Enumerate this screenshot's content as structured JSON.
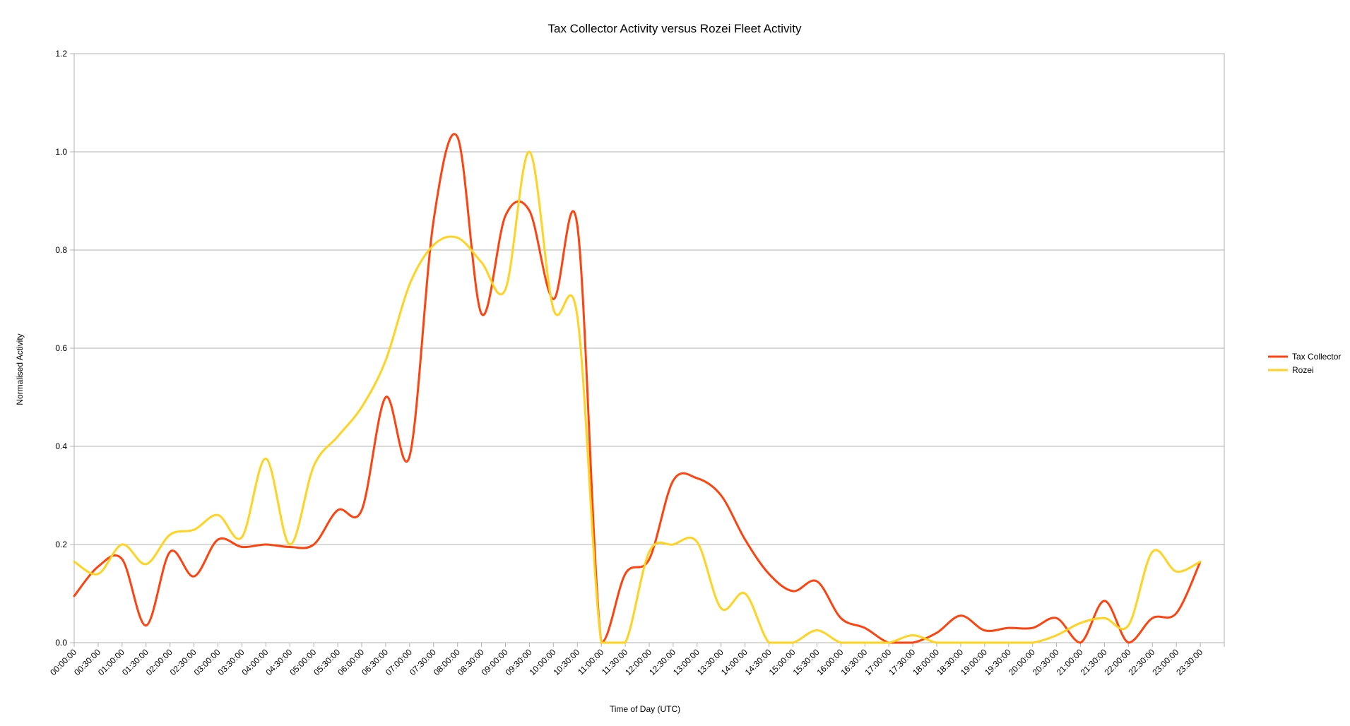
{
  "chart_data": {
    "type": "line",
    "title": "Tax Collector Activity versus Rozei Fleet Activity",
    "xlabel": "Time of Day (UTC)",
    "ylabel": "Normalised Activity",
    "ylim": [
      0,
      1.2
    ],
    "yticks": [
      "0.0",
      "0.2",
      "0.4",
      "0.6",
      "0.8",
      "1.0",
      "1.2"
    ],
    "grid": true,
    "legend_position": "right",
    "x": [
      "00:00:00",
      "00:30:00",
      "01:00:00",
      "01:30:00",
      "02:00:00",
      "02:30:00",
      "03:00:00",
      "03:30:00",
      "04:00:00",
      "04:30:00",
      "05:00:00",
      "05:30:00",
      "06:00:00",
      "06:30:00",
      "07:00:00",
      "07:30:00",
      "08:00:00",
      "08:30:00",
      "09:00:00",
      "09:30:00",
      "10:00:00",
      "10:30:00",
      "11:00:00",
      "11:30:00",
      "12:00:00",
      "12:30:00",
      "13:00:00",
      "13:30:00",
      "14:00:00",
      "14:30:00",
      "15:00:00",
      "15:30:00",
      "16:00:00",
      "16:30:00",
      "17:00:00",
      "17:30:00",
      "18:00:00",
      "18:30:00",
      "19:00:00",
      "19:30:00",
      "20:00:00",
      "20:30:00",
      "21:00:00",
      "21:30:00",
      "22:00:00",
      "22:30:00",
      "23:00:00",
      "23:30:00"
    ],
    "series": [
      {
        "name": "Tax Collector",
        "color": "#ff420e",
        "values": [
          0.095,
          0.155,
          0.17,
          0.035,
          0.185,
          0.135,
          0.21,
          0.195,
          0.2,
          0.195,
          0.2,
          0.27,
          0.27,
          0.5,
          0.38,
          0.86,
          1.03,
          0.67,
          0.87,
          0.88,
          0.7,
          0.85,
          0.0,
          0.14,
          0.17,
          0.33,
          0.335,
          0.3,
          0.21,
          0.14,
          0.105,
          0.125,
          0.05,
          0.03,
          0.0,
          0.0,
          0.02,
          0.055,
          0.025,
          0.03,
          0.03,
          0.05,
          0.0,
          0.085,
          0.0,
          0.05,
          0.06,
          0.165
        ]
      },
      {
        "name": "Rozei",
        "color": "#ffd320",
        "values": [
          0.165,
          0.14,
          0.2,
          0.16,
          0.22,
          0.23,
          0.26,
          0.215,
          0.375,
          0.2,
          0.36,
          0.42,
          0.48,
          0.575,
          0.73,
          0.81,
          0.825,
          0.775,
          0.72,
          1.0,
          0.68,
          0.665,
          0.0,
          0.0,
          0.185,
          0.2,
          0.205,
          0.07,
          0.1,
          0.0,
          0.0,
          0.025,
          0.0,
          0.0,
          0.0,
          0.015,
          0.0,
          0.0,
          0.0,
          0.0,
          0.0,
          0.015,
          0.04,
          0.05,
          0.035,
          0.185,
          0.145,
          0.165
        ]
      }
    ]
  }
}
